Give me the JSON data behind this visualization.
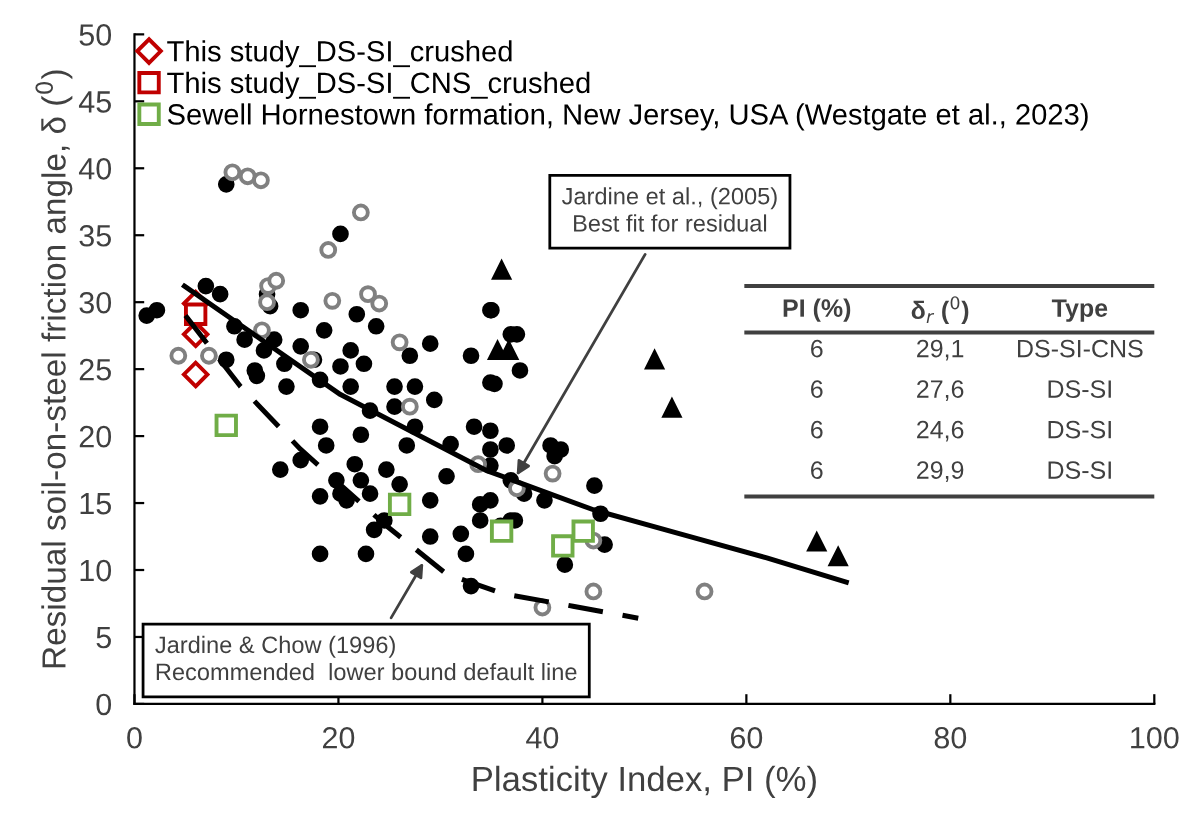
{
  "chart_data": {
    "type": "scatter",
    "xlabel": "Plasticity Index, PI (%)",
    "ylabel": "Residual soil-on-steel friction angle, δ ($^{0}$)",
    "xlim": [
      0,
      100
    ],
    "ylim": [
      0,
      50
    ],
    "xticks": [
      0,
      20,
      40,
      60,
      80,
      100
    ],
    "yticks": [
      0,
      5,
      10,
      15,
      20,
      25,
      30,
      35,
      40,
      45,
      50
    ],
    "grid": false,
    "legend": "top left",
    "series": [
      {
        "color": "#000000",
        "marker": "circle",
        "x": [
          9,
          20.2,
          1.2,
          2.2,
          7,
          8.4,
          13,
          13.3,
          16.3,
          18.6,
          21.8,
          23.7,
          29,
          33,
          35,
          35.3,
          37.5,
          9.8,
          10.8,
          12.7,
          14.7,
          11.8,
          9,
          17.6,
          20.2,
          21.2,
          22.5,
          25.5,
          27,
          18.2,
          16.3,
          21.2,
          14.9,
          13.7,
          12,
          14.3,
          16.3,
          18.2,
          18.8,
          19.8,
          20.2,
          20.8,
          22.2,
          21.6,
          23.1,
          18.2,
          18.2,
          23.5,
          24.5,
          24.7,
          26,
          26.7,
          27.5,
          29,
          29,
          30.6,
          31,
          32,
          32.5,
          33,
          33.9,
          34.9,
          29.4,
          25.5,
          27.5,
          22.2,
          23.1,
          33.3,
          37.3,
          36.5,
          22.7,
          34.9,
          36.9,
          37.8,
          34.9,
          34.9,
          34.9,
          40.8,
          41.8,
          41.2,
          36.9,
          38.2,
          40.2,
          34.9,
          36.9,
          35.9,
          33.9,
          45.1,
          45.7,
          46.1,
          42.2
        ],
        "values": [
          38.8,
          35.1,
          29,
          29.4,
          31.2,
          30.6,
          30.6,
          29.7,
          29.4,
          27.9,
          29.1,
          28.2,
          26.9,
          26,
          29.4,
          23.9,
          27.6,
          28.2,
          27.2,
          26.4,
          25.4,
          24.9,
          25.7,
          25.7,
          25.2,
          26.4,
          25.4,
          23.7,
          26,
          24.2,
          26.7,
          23.7,
          23.7,
          27.2,
          24.5,
          17.5,
          18.2,
          20.7,
          19.3,
          16.7,
          15.7,
          15.2,
          16.7,
          17.9,
          15.7,
          15.5,
          11.2,
          13,
          13.7,
          17.5,
          16.4,
          19.3,
          20.7,
          15.2,
          12.5,
          17,
          19.4,
          12.7,
          11.2,
          8.8,
          14.9,
          17.8,
          22.7,
          22.2,
          23.7,
          20.1,
          21.9,
          20.7,
          13.7,
          19.3,
          11.2,
          29.4,
          27.6,
          24.9,
          24,
          20.4,
          19,
          19.3,
          19,
          18.5,
          16.7,
          15.7,
          15.2,
          15.2,
          13.7,
          13.3,
          13.7,
          16.3,
          14.2,
          11.9,
          10.4
        ]
      },
      {
        "color": "#808080",
        "marker": "circle",
        "x": [
          9.6,
          11.1,
          12.4,
          22.2,
          19,
          19.4,
          22.9,
          24,
          13,
          12.5,
          4.3,
          7.3,
          13.1,
          13.9,
          17.3,
          26,
          27,
          33.7,
          37.5,
          45,
          41,
          45,
          40,
          55.9
        ],
        "values": [
          39.7,
          39.4,
          39.1,
          36.7,
          33.9,
          30.1,
          30.6,
          29.9,
          30,
          27.9,
          26,
          26,
          31.2,
          31.6,
          25.7,
          27,
          22.2,
          17.9,
          16.1,
          12.2,
          17.2,
          8.4,
          7.2,
          8.4
        ]
      },
      {
        "color": "#000000",
        "marker": "triangle",
        "x": [
          36,
          35.6,
          36.7,
          51,
          52.7,
          66.9,
          69
        ],
        "values": [
          32.4,
          26.4,
          26.4,
          25.7,
          22.1,
          12.1,
          11
        ]
      },
      {
        "type": "line",
        "color": "#000000",
        "marker": "none",
        "line_style": "solid",
        "x": [
          4.9,
          10,
          20.2,
          34.6,
          45,
          53.5,
          62,
          69.8
        ],
        "values": [
          31.2,
          28.5,
          23.1,
          17.4,
          14.5,
          12.7,
          10.9,
          9.1
        ]
      },
      {
        "type": "line",
        "color": "#000000",
        "marker": "none",
        "line_style": "dashed",
        "x": [
          5,
          10.4,
          16.3,
          24.7,
          30.6,
          36.3,
          43,
          49.4
        ],
        "values": [
          29,
          23.7,
          19,
          13.3,
          9.7,
          8.2,
          7.3,
          6.4
        ]
      },
      {
        "name": "This study_DS-SI_crushed",
        "color": "#c00000",
        "marker": "diamond",
        "x": [
          6,
          6,
          6
        ],
        "values": [
          27.6,
          24.6,
          29.9
        ]
      },
      {
        "name": "This study_DS-SI_CNS_crushed",
        "color": "#c00000",
        "marker": "square",
        "x": [
          6
        ],
        "values": [
          29.1
        ]
      },
      {
        "name": "Sewell Hornestown formation, New Jersey, USA (Westgate et al., 2023)",
        "color": "#70ad47",
        "marker": "square",
        "x": [
          9,
          26,
          36,
          42,
          44
        ],
        "values": [
          20.8,
          14.9,
          12.9,
          11.8,
          12.9
        ]
      }
    ],
    "annotations": [
      {
        "text": "Jardine et al., (2005)\nBest fit for residual",
        "x": 37.2,
        "y": 16.7
      },
      {
        "text": "Jardine & Chow (1996)\nRecommended  lower bound default line",
        "x": 28.6,
        "y": 10.9
      },
      "PI (%)",
      "δ$_{r}$ ($^{0}$)",
      "Type",
      "6",
      "29,1",
      "DS-SI-CNS",
      "6",
      "27,6",
      "DS-SI",
      "6",
      "24,6",
      "DS-SI",
      "6",
      "29,9",
      "DS-SI"
    ]
  }
}
